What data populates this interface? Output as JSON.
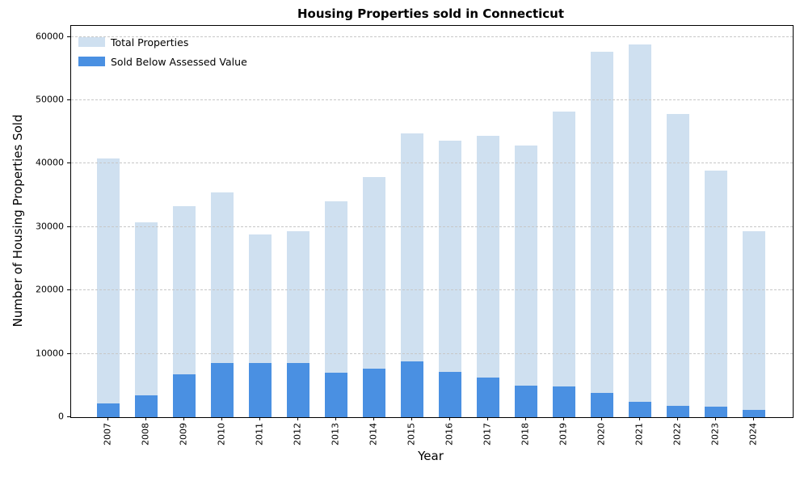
{
  "chart_data": {
    "type": "bar",
    "bar_mode": "overlay",
    "title": "Housing Properties sold in Connecticut",
    "xlabel": "Year",
    "ylabel": "Number of Housing Properties Sold",
    "categories": [
      "2007",
      "2008",
      "2009",
      "2010",
      "2011",
      "2012",
      "2013",
      "2014",
      "2015",
      "2016",
      "2017",
      "2018",
      "2019",
      "2020",
      "2021",
      "2022",
      "2023",
      "2024"
    ],
    "series": [
      {
        "name": "Total Properties",
        "color": "#cfe0f0",
        "values": [
          40800,
          30700,
          33300,
          35500,
          28800,
          29400,
          34100,
          37900,
          44800,
          43600,
          44400,
          42900,
          48200,
          57700,
          58800,
          47800,
          38900,
          29400
        ]
      },
      {
        "name": "Sold Below Assessed Value",
        "color": "#4a90e2",
        "values": [
          2200,
          3400,
          6700,
          8600,
          8500,
          8500,
          7000,
          7700,
          8800,
          7200,
          6300,
          5000,
          4900,
          3800,
          2400,
          1800,
          1600,
          1100
        ]
      }
    ],
    "ylim": [
      0,
      61740
    ],
    "yticks": [
      0,
      10000,
      20000,
      30000,
      40000,
      50000,
      60000
    ],
    "grid": "horizontal-dashed",
    "legend_position": "upper left",
    "grid_color": "#c7c7c7"
  }
}
